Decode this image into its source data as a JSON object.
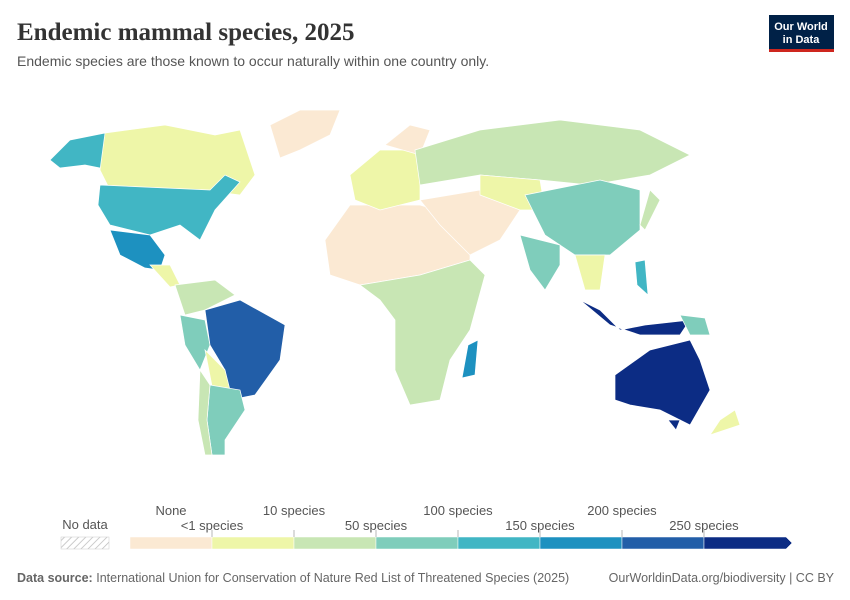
{
  "header": {
    "title": "Endemic mammal species, 2025",
    "subtitle": "Endemic species are those known to occur naturally within one country only.",
    "logo": [
      "Our World",
      "in Data"
    ]
  },
  "legend": {
    "no_data": "No data",
    "colors": [
      "#fbe9d3",
      "#eef6a8",
      "#c8e6b4",
      "#7fcdbb",
      "#41b6c4",
      "#1d91c0",
      "#225ea8",
      "#0c2c84"
    ],
    "labels": [
      "None",
      "<1 species",
      "10 species",
      "50 species",
      "100 species",
      "150 species",
      "200 species",
      "250 species"
    ]
  },
  "footer": {
    "source_label": "Data source:",
    "source": "International Union for Conservation of Nature Red List of Threatened Species (2025)",
    "link": "OurWorldinData.org/biodiversity | CC BY"
  }
}
